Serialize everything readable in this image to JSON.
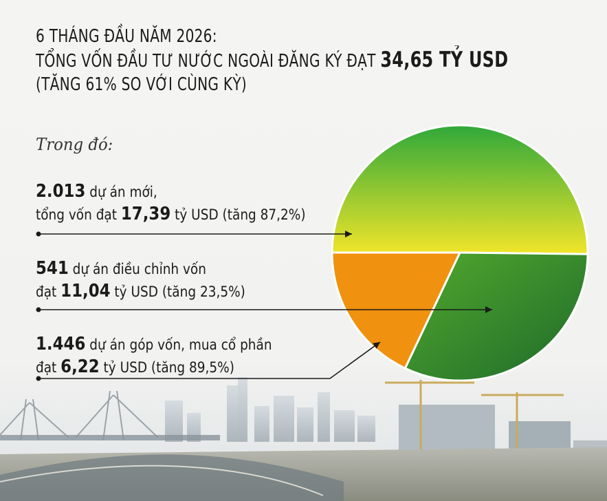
{
  "header": {
    "line1": "6 THÁNG ĐẦU NĂM 2026:",
    "line2_prefix": "TỔNG VỐN ĐẦU TƯ NƯỚC NGOÀI ĐĂNG KÝ ĐẠT ",
    "line2_value": "34,65 TỶ USD",
    "line3": "(TĂNG 61% SO VỚI CÙNG KỲ)"
  },
  "subtitle": "Trong đó:",
  "items": [
    {
      "num": "2.013",
      "line1_rest": " dự án mới,",
      "line2_pre": "tổng vốn đạt ",
      "line2_value": "17,39",
      "line2_post": " tỷ USD (tăng 87,2%)"
    },
    {
      "num": "541",
      "line1_rest": " dự án điều chỉnh vốn",
      "line2_pre": "đạt ",
      "line2_value": "11,04",
      "line2_post": " tỷ USD (tăng 23,5%)"
    },
    {
      "num": "1.446",
      "line1_rest": " dự án góp vốn, mua cổ phần",
      "line2_pre": "đạt ",
      "line2_value": "6,22",
      "line2_post": " tỷ USD (tăng 89,5%)"
    }
  ],
  "colors": {
    "new_projects_top": "#2fa83a",
    "new_projects_bottom": "#f1e52a",
    "adjusted_light": "#52a92c",
    "adjusted_dark": "#1d6a2c",
    "capital_contribution": "#f0910f",
    "arrow": "#1a1a1a"
  },
  "chart_data": {
    "type": "pie",
    "title": "",
    "unit": "tỷ USD",
    "total": 34.65,
    "slices": [
      {
        "label": "dự án mới",
        "value": 17.39
      },
      {
        "label": "dự án điều chỉnh vốn",
        "value": 11.04
      },
      {
        "label": "dự án góp vốn, mua cổ phần",
        "value": 6.22
      }
    ]
  }
}
